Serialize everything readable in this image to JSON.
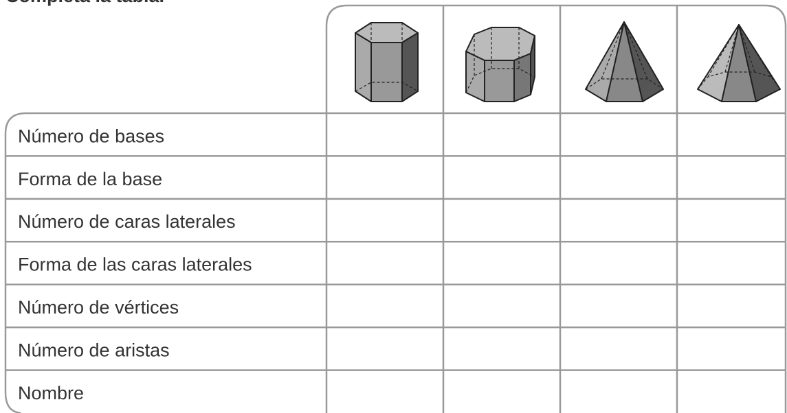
{
  "instruction": "Completa la tabla.",
  "table": {
    "rows": [
      "Número de bases",
      "Forma de la base",
      "Número de caras laterales",
      "Forma de las caras laterales",
      "Número de vértices",
      "Número de aristas",
      "Nombre"
    ]
  }
}
